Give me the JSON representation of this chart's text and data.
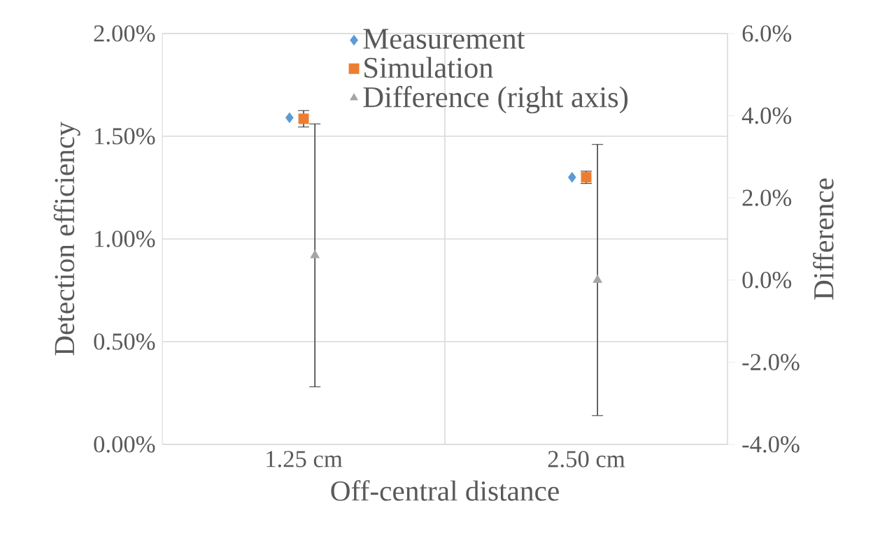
{
  "chart_data": {
    "type": "scatter",
    "xlabel": "Off-central distance",
    "ylabel": "Detection efficiency",
    "y2label": "Difference",
    "categories": [
      "1.25 cm",
      "2.50 cm"
    ],
    "series": [
      {
        "name": "Measurement",
        "color": "#5b9bd5",
        "marker": "diamond",
        "values": [
          1.59,
          1.3
        ]
      },
      {
        "name": "Simulation",
        "color": "#ed7d31",
        "marker": "square",
        "values": [
          1.585,
          1.3
        ],
        "errors": [
          0.04,
          0.03
        ]
      },
      {
        "name": "Difference (right axis)",
        "color": "#a5a5a5",
        "marker": "triangle",
        "axis": "y2",
        "values": [
          0.6,
          0.0
        ],
        "errors": [
          3.2,
          3.3
        ]
      }
    ],
    "ylim": [
      0,
      2
    ],
    "yticks": [
      {
        "value": 0,
        "label": "0.00%"
      },
      {
        "value": 0.5,
        "label": "0.50%"
      },
      {
        "value": 1,
        "label": "1.00%"
      },
      {
        "value": 1.5,
        "label": "1.50%"
      },
      {
        "value": 2,
        "label": "2.00%"
      }
    ],
    "y2lim": [
      -4,
      6
    ],
    "y2ticks": [
      {
        "value": -4,
        "label": "-4.0%"
      },
      {
        "value": -2,
        "label": "-2.0%"
      },
      {
        "value": 0,
        "label": "0.0%"
      },
      {
        "value": 2,
        "label": "2.0%"
      },
      {
        "value": 4,
        "label": "4.0%"
      },
      {
        "value": 6,
        "label": "6.0%"
      }
    ],
    "grid": true,
    "legend": "top"
  }
}
